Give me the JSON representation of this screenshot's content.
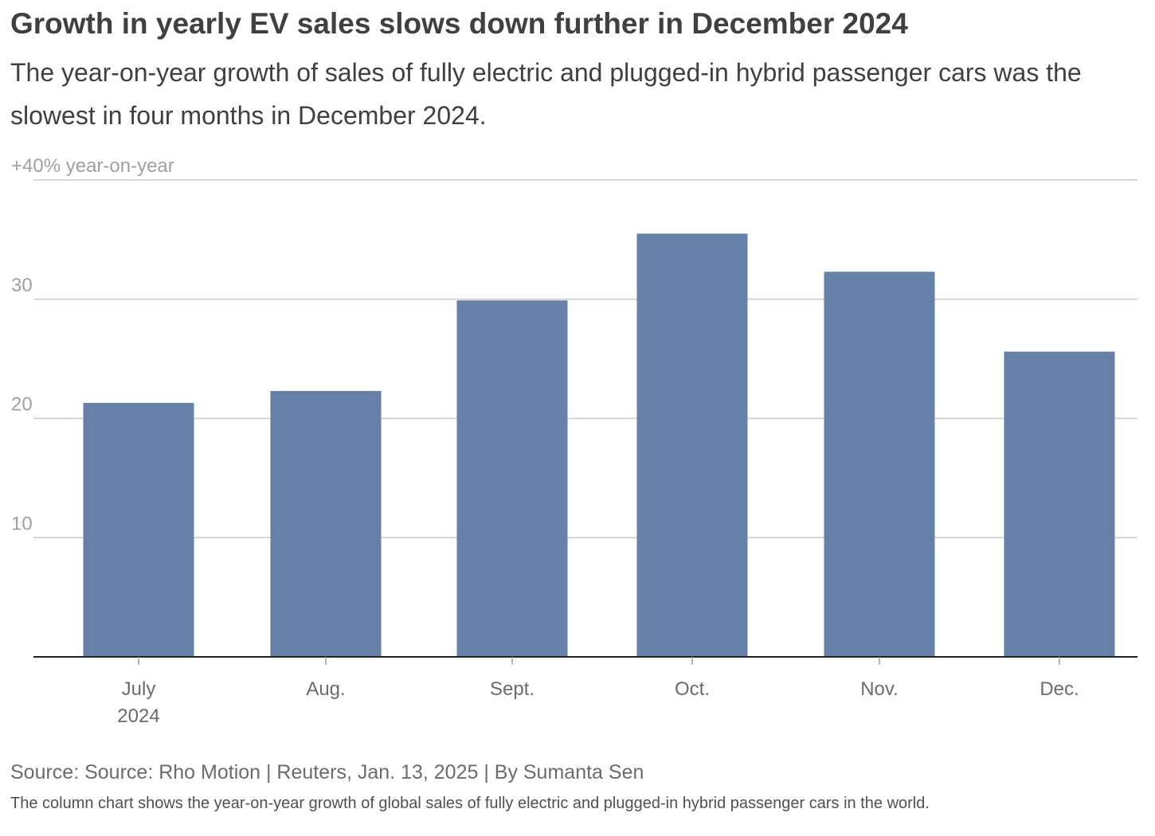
{
  "header": {
    "title": "Growth in yearly EV sales slows down further in December 2024",
    "subtitle": "The year-on-year growth of sales of fully electric and plugged-in hybrid passenger cars was the slowest in four months in December 2024."
  },
  "chart_data": {
    "type": "bar",
    "categories": [
      "July",
      "Aug.",
      "Sept.",
      "Oct.",
      "Nov.",
      "Dec."
    ],
    "category_sublabels": [
      "2024",
      "",
      "",
      "",
      "",
      ""
    ],
    "values": [
      21.3,
      22.3,
      29.9,
      35.5,
      32.3,
      25.6
    ],
    "ylim": [
      0,
      40
    ],
    "yticks": [
      10,
      20,
      30,
      40
    ],
    "ytick_labels": [
      "10",
      "20",
      "30",
      "+40% year-on-year"
    ],
    "grid": true,
    "bar_color": "#6680a8",
    "grid_color": "#cccccc",
    "axis_color": "#222222"
  },
  "footer": {
    "source": "Source: Source: Rho Motion | Reuters, Jan. 13, 2025 | By Sumanta Sen",
    "note": "The column chart shows the year-on-year growth of global sales of fully electric and plugged-in hybrid passenger cars in the world."
  }
}
